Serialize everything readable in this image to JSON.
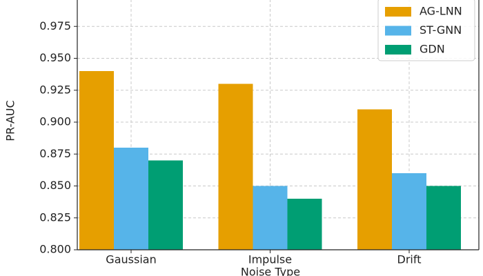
{
  "chart_data": {
    "type": "bar",
    "x_label": "Noise Type",
    "y_label": "PR-AUC",
    "categories": [
      "Gaussian",
      "Impulse",
      "Drift"
    ],
    "series": [
      {
        "name": "AG-LNN",
        "color": "#E69F00",
        "values": [
          0.94,
          0.93,
          0.91
        ]
      },
      {
        "name": "ST-GNN",
        "color": "#56B4E9",
        "values": [
          0.88,
          0.85,
          0.86
        ]
      },
      {
        "name": "GDN",
        "color": "#009E73",
        "values": [
          0.87,
          0.84,
          0.85
        ]
      }
    ],
    "ylim": [
      0.8,
      1.0
    ],
    "yticks": [
      {
        "value": 0.8,
        "label": "0.800"
      },
      0.825,
      {
        "value": 0.85,
        "label": "0.850"
      },
      0.875,
      {
        "value": 0.9,
        "label": "0.900"
      },
      0.925,
      {
        "value": 0.95,
        "label": "0.950"
      },
      0.975
    ],
    "grid": true,
    "legend": "upper right"
  }
}
